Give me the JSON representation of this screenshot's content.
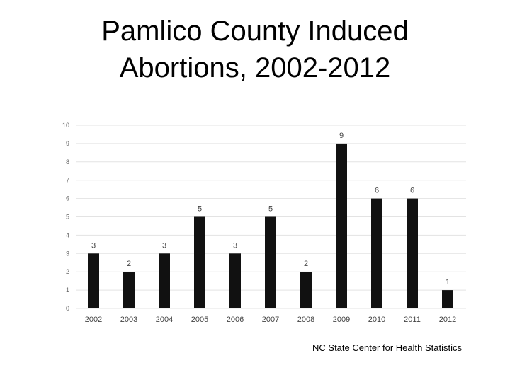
{
  "title_line1": "Pamlico County Induced",
  "title_line2": "Abortions, 2002-2012",
  "source": "NC State Center for Health Statistics",
  "chart_data": {
    "type": "bar",
    "title": "Pamlico County Induced Abortions, 2002-2012",
    "categories": [
      "2002",
      "2003",
      "2004",
      "2005",
      "2006",
      "2007",
      "2008",
      "2009",
      "2010",
      "2011",
      "2012"
    ],
    "values": [
      3,
      2,
      3,
      5,
      3,
      5,
      2,
      9,
      6,
      6,
      1
    ],
    "xlabel": "",
    "ylabel": "",
    "ylim": [
      0,
      10
    ],
    "yticks": [
      0,
      1,
      2,
      3,
      4,
      5,
      6,
      7,
      8,
      9,
      10
    ],
    "grid": true,
    "data_labels": true,
    "bar_color": "#111111",
    "grid_color": "#e3e3e3"
  }
}
